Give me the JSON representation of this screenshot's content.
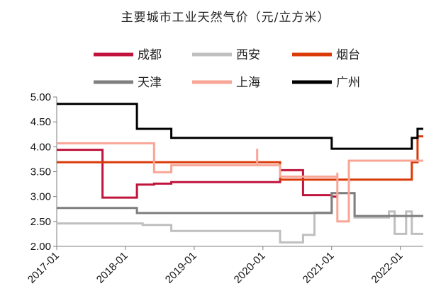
{
  "chart_data": {
    "type": "line",
    "title": "主要城市工业天然气价（元/立方米）",
    "xlabel": "",
    "ylabel": "",
    "x_range": [
      "2017-01",
      "2022-05"
    ],
    "ylim": [
      2.0,
      5.0
    ],
    "yticks": [
      "2.00",
      "2.50",
      "3.00",
      "3.50",
      "4.00",
      "4.50",
      "5.00"
    ],
    "xticks": [
      "2017-01",
      "2018-01",
      "2019-01",
      "2020-01",
      "2021-01",
      "2022-01"
    ],
    "grid": false,
    "legend_position": "top",
    "series": [
      {
        "name": "成都",
        "color": "#C0143C",
        "points": [
          [
            "2017-01",
            3.94
          ],
          [
            "2017-09",
            3.94
          ],
          [
            "2017-09",
            2.98
          ],
          [
            "2018-03",
            2.98
          ],
          [
            "2018-03",
            3.24
          ],
          [
            "2018-06",
            3.24
          ],
          [
            "2018-06",
            3.26
          ],
          [
            "2018-09",
            3.26
          ],
          [
            "2018-09",
            3.29
          ],
          [
            "2020-04",
            3.29
          ],
          [
            "2020-04",
            3.53
          ],
          [
            "2020-08",
            3.53
          ],
          [
            "2020-08",
            3.03
          ],
          [
            "2021-01",
            3.03
          ],
          [
            "2021-01",
            3.0
          ],
          [
            "2021-02",
            3.0
          ]
        ]
      },
      {
        "name": "西安",
        "color": "#BFBFBF",
        "points": [
          [
            "2017-01",
            2.46
          ],
          [
            "2018-04",
            2.46
          ],
          [
            "2018-04",
            2.43
          ],
          [
            "2018-09",
            2.43
          ],
          [
            "2018-09",
            2.31
          ],
          [
            "2020-04",
            2.31
          ],
          [
            "2020-04",
            2.08
          ],
          [
            "2020-08",
            2.08
          ],
          [
            "2020-08",
            2.23
          ],
          [
            "2020-10",
            2.23
          ],
          [
            "2020-10",
            2.68
          ],
          [
            "2021-01",
            2.68
          ],
          [
            "2021-01",
            3.07
          ],
          [
            "2021-05",
            3.07
          ],
          [
            "2021-05",
            2.58
          ],
          [
            "2021-11",
            2.58
          ],
          [
            "2021-11",
            2.7
          ],
          [
            "2021-12",
            2.7
          ],
          [
            "2021-12",
            2.25
          ],
          [
            "2022-02",
            2.25
          ],
          [
            "2022-02",
            2.7
          ],
          [
            "2022-03",
            2.7
          ],
          [
            "2022-03",
            2.25
          ],
          [
            "2022-05",
            2.25
          ]
        ]
      },
      {
        "name": "烟台",
        "color": "#D93A08",
        "points": [
          [
            "2017-01",
            3.69
          ],
          [
            "2020-04",
            3.69
          ],
          [
            "2020-04",
            3.34
          ],
          [
            "2022-03",
            3.34
          ],
          [
            "2022-03",
            3.69
          ],
          [
            "2022-04",
            3.69
          ],
          [
            "2022-04",
            4.21
          ],
          [
            "2022-05",
            4.21
          ]
        ]
      },
      {
        "name": "天津",
        "color": "#7F7F7F",
        "points": [
          [
            "2017-01",
            2.77
          ],
          [
            "2018-03",
            2.77
          ],
          [
            "2018-03",
            2.67
          ],
          [
            "2021-01",
            2.67
          ],
          [
            "2021-01",
            3.07
          ],
          [
            "2021-05",
            3.07
          ],
          [
            "2021-05",
            2.61
          ],
          [
            "2022-05",
            2.61
          ]
        ]
      },
      {
        "name": "上海",
        "color": "#F8A596",
        "points": [
          [
            "2017-01",
            4.07
          ],
          [
            "2018-06",
            4.07
          ],
          [
            "2018-06",
            3.49
          ],
          [
            "2018-09",
            3.49
          ],
          [
            "2018-09",
            3.63
          ],
          [
            "2019-12",
            3.63
          ],
          [
            "2019-12",
            3.96
          ],
          [
            "2019-12",
            3.63
          ],
          [
            "2020-04",
            3.63
          ],
          [
            "2020-04",
            3.4
          ],
          [
            "2021-02",
            3.4
          ],
          [
            "2021-02",
            3.48
          ],
          [
            "2021-02",
            2.5
          ],
          [
            "2021-04",
            2.5
          ],
          [
            "2021-04",
            3.72
          ],
          [
            "2022-05",
            3.72
          ]
        ]
      },
      {
        "name": "广州",
        "color": "#000000",
        "points": [
          [
            "2017-01",
            4.86
          ],
          [
            "2018-03",
            4.86
          ],
          [
            "2018-03",
            4.36
          ],
          [
            "2018-09",
            4.36
          ],
          [
            "2018-09",
            4.18
          ],
          [
            "2021-01",
            4.18
          ],
          [
            "2021-01",
            3.96
          ],
          [
            "2022-03",
            3.96
          ],
          [
            "2022-03",
            4.18
          ],
          [
            "2022-04",
            4.18
          ],
          [
            "2022-04",
            4.36
          ],
          [
            "2022-05",
            4.36
          ]
        ]
      }
    ]
  }
}
